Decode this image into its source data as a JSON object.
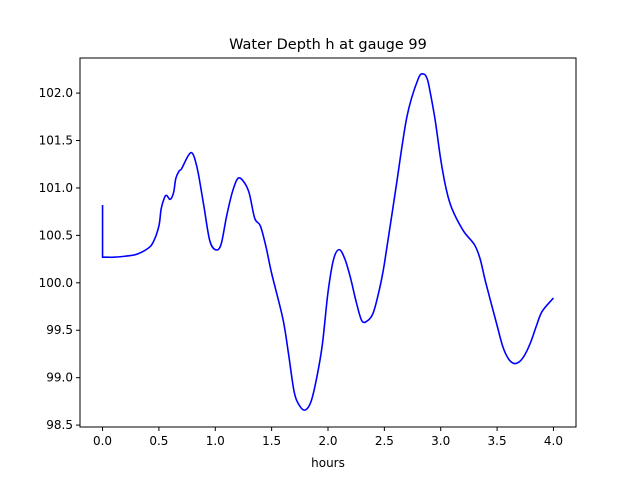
{
  "chart_data": {
    "type": "line",
    "title": "Water Depth h at gauge 99",
    "xlabel": "hours",
    "ylabel": "",
    "xlim": [
      -0.2,
      4.2
    ],
    "ylim": [
      98.48,
      102.37
    ],
    "xticks": [
      0.0,
      0.5,
      1.0,
      1.5,
      2.0,
      2.5,
      3.0,
      3.5,
      4.0
    ],
    "xtick_labels": [
      "0.0",
      "0.5",
      "1.0",
      "1.5",
      "2.0",
      "2.5",
      "3.0",
      "3.5",
      "4.0"
    ],
    "yticks": [
      98.5,
      99.0,
      99.5,
      100.0,
      100.5,
      101.0,
      101.5,
      102.0
    ],
    "ytick_labels": [
      "98.5",
      "99.0",
      "99.5",
      "100.0",
      "100.5",
      "101.0",
      "101.5",
      "102.0"
    ],
    "grid": false,
    "series": [
      {
        "color": "#0000ff",
        "x": [
          0.0,
          0.0,
          0.05,
          0.1,
          0.2,
          0.3,
          0.4,
          0.45,
          0.5,
          0.52,
          0.55,
          0.57,
          0.6,
          0.63,
          0.65,
          0.68,
          0.7,
          0.75,
          0.78,
          0.8,
          0.82,
          0.85,
          0.9,
          0.95,
          1.0,
          1.05,
          1.1,
          1.15,
          1.2,
          1.25,
          1.3,
          1.35,
          1.4,
          1.45,
          1.5,
          1.6,
          1.65,
          1.7,
          1.75,
          1.8,
          1.85,
          1.9,
          1.95,
          2.0,
          2.05,
          2.1,
          2.15,
          2.2,
          2.25,
          2.3,
          2.35,
          2.4,
          2.45,
          2.5,
          2.6,
          2.7,
          2.8,
          2.85,
          2.88,
          2.9,
          2.95,
          3.0,
          3.05,
          3.1,
          3.2,
          3.3,
          3.35,
          3.4,
          3.5,
          3.55,
          3.6,
          3.65,
          3.7,
          3.75,
          3.8,
          3.85,
          3.9,
          4.0
        ],
        "y": [
          100.82,
          100.27,
          100.27,
          100.27,
          100.28,
          100.3,
          100.36,
          100.43,
          100.6,
          100.78,
          100.9,
          100.92,
          100.88,
          100.95,
          101.1,
          101.18,
          101.2,
          101.32,
          101.37,
          101.36,
          101.3,
          101.15,
          100.8,
          100.45,
          100.35,
          100.4,
          100.7,
          100.95,
          101.1,
          101.07,
          100.95,
          100.68,
          100.6,
          100.38,
          100.1,
          99.62,
          99.25,
          98.85,
          98.7,
          98.66,
          98.75,
          99.0,
          99.35,
          99.9,
          100.25,
          100.35,
          100.25,
          100.05,
          99.8,
          99.6,
          99.6,
          99.68,
          99.9,
          100.2,
          100.98,
          101.75,
          102.15,
          102.2,
          102.15,
          102.05,
          101.72,
          101.3,
          100.98,
          100.78,
          100.55,
          100.4,
          100.25,
          100.0,
          99.55,
          99.33,
          99.2,
          99.15,
          99.17,
          99.25,
          99.38,
          99.55,
          99.7,
          99.84
        ]
      }
    ]
  }
}
